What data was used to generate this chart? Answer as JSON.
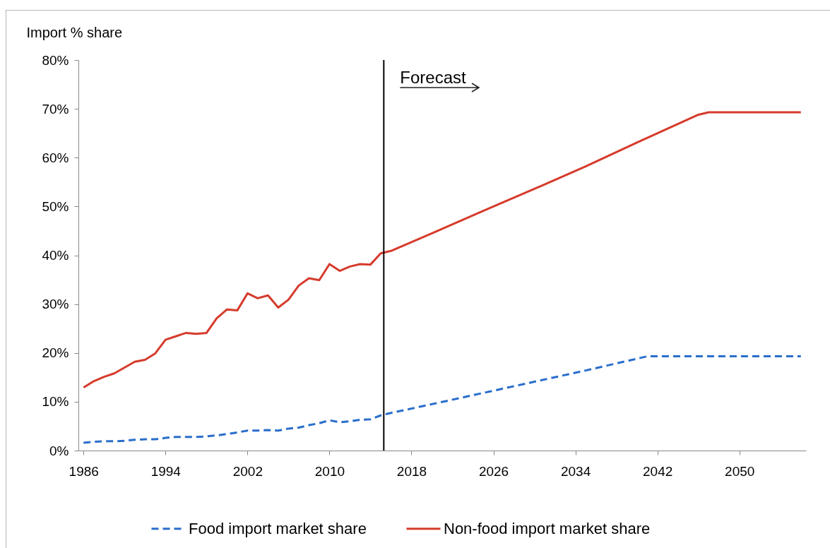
{
  "chart_data": {
    "type": "line",
    "ylabel": "Import % share",
    "xlim": [
      1985.5,
      2056.5
    ],
    "xticks": [
      1986,
      1994,
      2002,
      2010,
      2018,
      2026,
      2034,
      2042,
      2050
    ],
    "ylim": [
      0,
      80
    ],
    "yticks": [
      {
        "value": 0,
        "label": "0%"
      },
      {
        "value": 10,
        "label": "10%"
      },
      {
        "value": 20,
        "label": "20%"
      },
      {
        "value": 30,
        "label": "30%"
      },
      {
        "value": 40,
        "label": "40%"
      },
      {
        "value": 50,
        "label": "50%"
      },
      {
        "value": 60,
        "label": "60%"
      },
      {
        "value": 70,
        "label": "70%"
      },
      {
        "value": 80,
        "label": "80%"
      }
    ],
    "series": [
      {
        "name": "Food import market share",
        "color": "#2a6ecb",
        "line_style": "dashed",
        "x": [
          1986,
          1987,
          1988,
          1989,
          1990,
          1991,
          1992,
          1993,
          1994,
          1995,
          1996,
          1997,
          1998,
          1999,
          2000,
          2001,
          2002,
          2003,
          2004,
          2005,
          2006,
          2007,
          2008,
          2009,
          2010,
          2011,
          2012,
          2013,
          2014,
          2015,
          2016,
          2020,
          2025,
          2030,
          2035,
          2041,
          2056
        ],
        "values": [
          1.6,
          1.8,
          1.9,
          1.9,
          2.0,
          2.2,
          2.3,
          2.3,
          2.6,
          2.8,
          2.8,
          2.8,
          2.9,
          3.1,
          3.4,
          3.7,
          4.1,
          4.1,
          4.2,
          4.1,
          4.5,
          4.7,
          5.2,
          5.6,
          6.2,
          5.8,
          6.0,
          6.3,
          6.4,
          7.2,
          7.7,
          9.5,
          11.8,
          14.1,
          16.4,
          19.3,
          19.3
        ]
      },
      {
        "name": "Non-food import market share",
        "color": "#d63b2c",
        "line_style": "solid",
        "x": [
          1986,
          1987,
          1988,
          1989,
          1990,
          1991,
          1992,
          1993,
          1994,
          1995,
          1996,
          1997,
          1998,
          1999,
          2000,
          2001,
          2002,
          2003,
          2004,
          2005,
          2006,
          2007,
          2008,
          2009,
          2010,
          2011,
          2012,
          2013,
          2014,
          2015,
          2016,
          2020,
          2025,
          2030,
          2035,
          2040,
          2046,
          2047,
          2056
        ],
        "values": [
          12.9,
          14.2,
          15.1,
          15.8,
          17.0,
          18.2,
          18.6,
          19.9,
          22.7,
          23.4,
          24.1,
          23.9,
          24.1,
          27.1,
          28.9,
          28.7,
          32.2,
          31.2,
          31.8,
          29.3,
          30.9,
          33.8,
          35.3,
          34.9,
          38.2,
          36.8,
          37.7,
          38.2,
          38.1,
          40.4,
          40.9,
          44.5,
          49.1,
          53.6,
          58.2,
          63.1,
          68.8,
          69.3,
          69.3
        ]
      }
    ],
    "ref_lines": [
      {
        "axis": "x",
        "value": 2015.3,
        "label": "Forecast",
        "color": "#000000",
        "line_style": "solid"
      }
    ],
    "legend": "bottom"
  }
}
